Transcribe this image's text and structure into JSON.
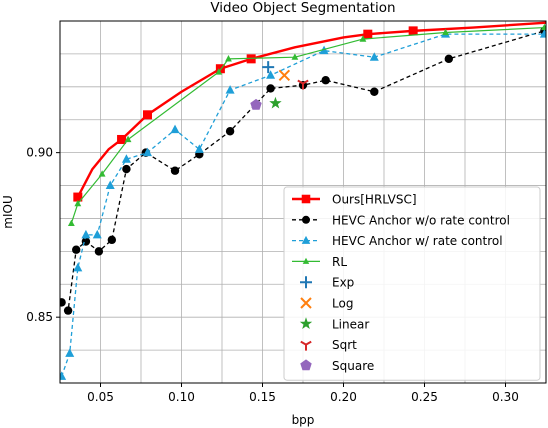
{
  "chart_data": {
    "type": "line",
    "title": "Video Object Segmentation",
    "xlabel": "bpp",
    "ylabel": "mIOU",
    "xlim": [
      0.025,
      0.325
    ],
    "ylim": [
      0.83,
      0.94
    ],
    "xticks": [
      0.05,
      0.1,
      0.15,
      0.2,
      0.25,
      0.3
    ],
    "xtick_labels": [
      "0.05",
      "0.10",
      "0.15",
      "0.20",
      "0.25",
      "0.30"
    ],
    "yticks": [
      0.85,
      0.9
    ],
    "ytick_labels": [
      "0.85",
      "0.90"
    ],
    "grid": true,
    "legend_position": "lower-right",
    "series": [
      {
        "name": "Ours[HRLVSC]",
        "kind": "line",
        "color": "#ff0000",
        "marker": "square",
        "x": [
          0.036,
          0.063,
          0.079,
          0.124,
          0.143,
          0.215,
          0.243
        ],
        "y": [
          0.8865,
          0.904,
          0.9115,
          0.9255,
          0.9285,
          0.936,
          0.937
        ],
        "curve_x": [
          0.036,
          0.045,
          0.055,
          0.063,
          0.079,
          0.1,
          0.124,
          0.143,
          0.17,
          0.2,
          0.215,
          0.243,
          0.28,
          0.325
        ],
        "curve_y": [
          0.8865,
          0.895,
          0.901,
          0.904,
          0.9115,
          0.9185,
          0.9255,
          0.9285,
          0.932,
          0.935,
          0.936,
          0.937,
          0.938,
          0.9395
        ]
      },
      {
        "name": "HEVC Anchor w/o rate control",
        "kind": "line",
        "color": "#000000",
        "marker": "circle",
        "dash": "dashed",
        "x": [
          0.026,
          0.03,
          0.035,
          0.041,
          0.049,
          0.057,
          0.066,
          0.078,
          0.096,
          0.111,
          0.13,
          0.155,
          0.175,
          0.189,
          0.219,
          0.265,
          0.324
        ],
        "y": [
          0.8545,
          0.852,
          0.8705,
          0.873,
          0.87,
          0.8735,
          0.895,
          0.9,
          0.8945,
          0.8995,
          0.9065,
          0.9195,
          0.9205,
          0.922,
          0.9185,
          0.9285,
          0.937
        ]
      },
      {
        "name": "HEVC Anchor w/ rate control",
        "kind": "line",
        "color": "#1f9fd8",
        "marker": "triangle",
        "dash": "dashed",
        "x": [
          0.026,
          0.031,
          0.036,
          0.041,
          0.048,
          0.056,
          0.066,
          0.079,
          0.096,
          0.111,
          0.13,
          0.155,
          0.188,
          0.219,
          0.263,
          0.324
        ],
        "y": [
          0.832,
          0.839,
          0.865,
          0.875,
          0.875,
          0.89,
          0.898,
          0.9,
          0.907,
          0.901,
          0.919,
          0.9235,
          0.931,
          0.929,
          0.936,
          0.936
        ]
      },
      {
        "name": "RL",
        "kind": "line",
        "color": "#33bb33",
        "marker": "small-triangle",
        "x": [
          0.032,
          0.036,
          0.051,
          0.067,
          0.123,
          0.129,
          0.17,
          0.212,
          0.263,
          0.324
        ],
        "y": [
          0.8785,
          0.8845,
          0.8935,
          0.904,
          0.9245,
          0.9285,
          0.929,
          0.9345,
          0.9365,
          0.938
        ]
      },
      {
        "name": "Exp",
        "kind": "point",
        "color": "#1f77b4",
        "marker": "plus",
        "x": [
          0.1535
        ],
        "y": [
          0.926
        ]
      },
      {
        "name": "Log",
        "kind": "point",
        "color": "#ff7f0e",
        "marker": "x",
        "x": [
          0.1635
        ],
        "y": [
          0.9235
        ]
      },
      {
        "name": "Linear",
        "kind": "point",
        "color": "#2ca02c",
        "marker": "star",
        "x": [
          0.158
        ],
        "y": [
          0.915
        ]
      },
      {
        "name": "Sqrt",
        "kind": "point",
        "color": "#d62728",
        "marker": "tri-down",
        "x": [
          0.175
        ],
        "y": [
          0.921
        ]
      },
      {
        "name": "Square",
        "kind": "point",
        "color": "#9467bd",
        "marker": "pentagon",
        "x": [
          0.146
        ],
        "y": [
          0.9145
        ]
      }
    ]
  }
}
